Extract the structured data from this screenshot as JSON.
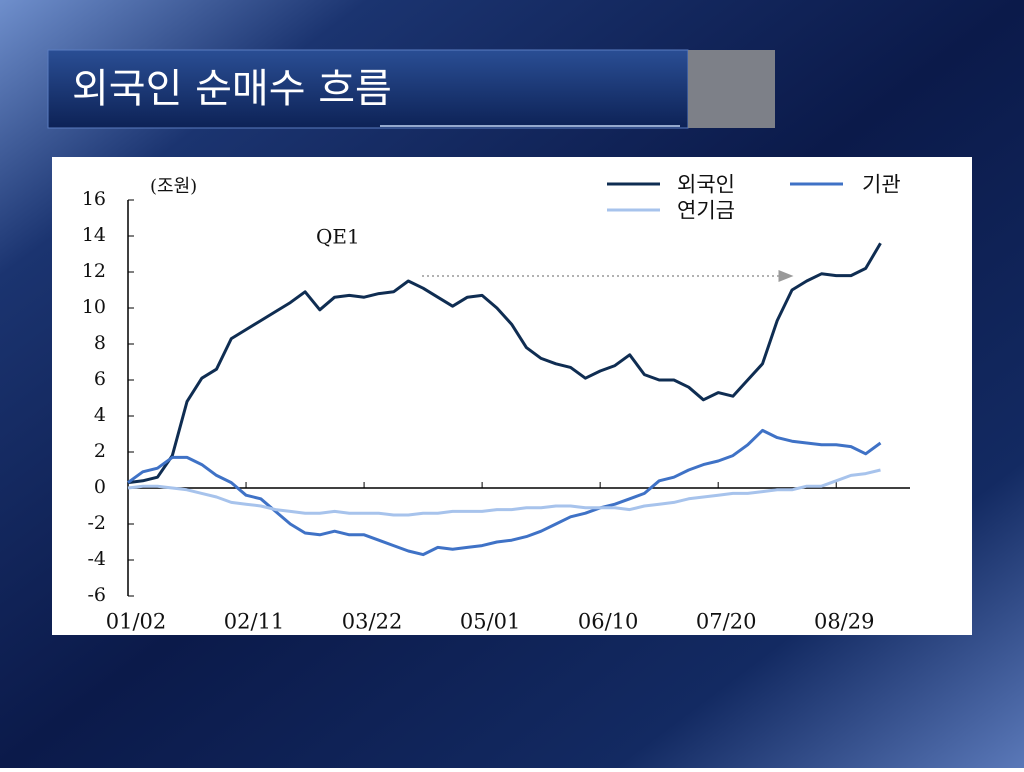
{
  "slide_title": "외국인 순매수 흐름",
  "chart_data": {
    "type": "line",
    "unit_label": "(조원)",
    "annotation": "QE1",
    "x": [
      0,
      5,
      10,
      15,
      20,
      25,
      30,
      35,
      40,
      45,
      50,
      55,
      60,
      65,
      70,
      75,
      80,
      85,
      90,
      95,
      100,
      105,
      110,
      115,
      120,
      125,
      130,
      135,
      140,
      145,
      150,
      155,
      160,
      165,
      170,
      175,
      180,
      185,
      190,
      195,
      200,
      205,
      210,
      215,
      220,
      225,
      230,
      235,
      240,
      245,
      250,
      255
    ],
    "xlim": [
      0,
      265
    ],
    "xticks": [
      {
        "value": 0,
        "label": "01/02"
      },
      {
        "value": 40,
        "label": "02/11"
      },
      {
        "value": 80,
        "label": "03/22"
      },
      {
        "value": 120,
        "label": "05/01"
      },
      {
        "value": 160,
        "label": "06/10"
      },
      {
        "value": 200,
        "label": "07/20"
      },
      {
        "value": 240,
        "label": "08/29"
      }
    ],
    "ylim": [
      -6,
      16
    ],
    "yticks": [
      -6,
      -4,
      -2,
      0,
      2,
      4,
      6,
      8,
      10,
      12,
      14,
      16
    ],
    "series": [
      {
        "name": "외국인",
        "color": "#0f2d52",
        "values": [
          0.3,
          0.4,
          0.6,
          1.8,
          4.8,
          6.1,
          6.6,
          8.3,
          8.8,
          9.3,
          9.8,
          10.3,
          10.9,
          9.9,
          10.6,
          10.7,
          10.6,
          10.8,
          10.9,
          11.5,
          11.1,
          10.6,
          10.1,
          10.6,
          10.7,
          10.0,
          9.1,
          7.8,
          7.2,
          6.9,
          6.7,
          6.1,
          6.5,
          6.8,
          7.4,
          6.3,
          6.0,
          6.0,
          5.6,
          4.9,
          5.3,
          5.1,
          6.0,
          6.9,
          9.3,
          11.0,
          11.5,
          11.9,
          11.8,
          11.8,
          12.2,
          13.6
        ]
      },
      {
        "name": "기관",
        "color": "#3f72c6",
        "values": [
          0.3,
          0.9,
          1.1,
          1.7,
          1.7,
          1.3,
          0.7,
          0.3,
          -0.4,
          -0.6,
          -1.3,
          -2.0,
          -2.5,
          -2.6,
          -2.4,
          -2.6,
          -2.6,
          -2.9,
          -3.2,
          -3.5,
          -3.7,
          -3.3,
          -3.4,
          -3.3,
          -3.2,
          -3.0,
          -2.9,
          -2.7,
          -2.4,
          -2.0,
          -1.6,
          -1.4,
          -1.1,
          -0.9,
          -0.6,
          -0.3,
          0.4,
          0.6,
          1.0,
          1.3,
          1.5,
          1.8,
          2.4,
          3.2,
          2.8,
          2.6,
          2.5,
          2.4,
          2.4,
          2.3,
          1.9,
          2.5
        ]
      },
      {
        "name": "연기금",
        "color": "#a7c3ec",
        "values": [
          0.0,
          0.1,
          0.1,
          0.0,
          -0.1,
          -0.3,
          -0.5,
          -0.8,
          -0.9,
          -1.0,
          -1.2,
          -1.3,
          -1.4,
          -1.4,
          -1.3,
          -1.4,
          -1.4,
          -1.4,
          -1.5,
          -1.5,
          -1.4,
          -1.4,
          -1.3,
          -1.3,
          -1.3,
          -1.2,
          -1.2,
          -1.1,
          -1.1,
          -1.0,
          -1.0,
          -1.1,
          -1.1,
          -1.1,
          -1.2,
          -1.0,
          -0.9,
          -0.8,
          -0.6,
          -0.5,
          -0.4,
          -0.3,
          -0.3,
          -0.2,
          -0.1,
          -0.1,
          0.1,
          0.1,
          0.4,
          0.7,
          0.8,
          1.0
        ]
      }
    ]
  }
}
